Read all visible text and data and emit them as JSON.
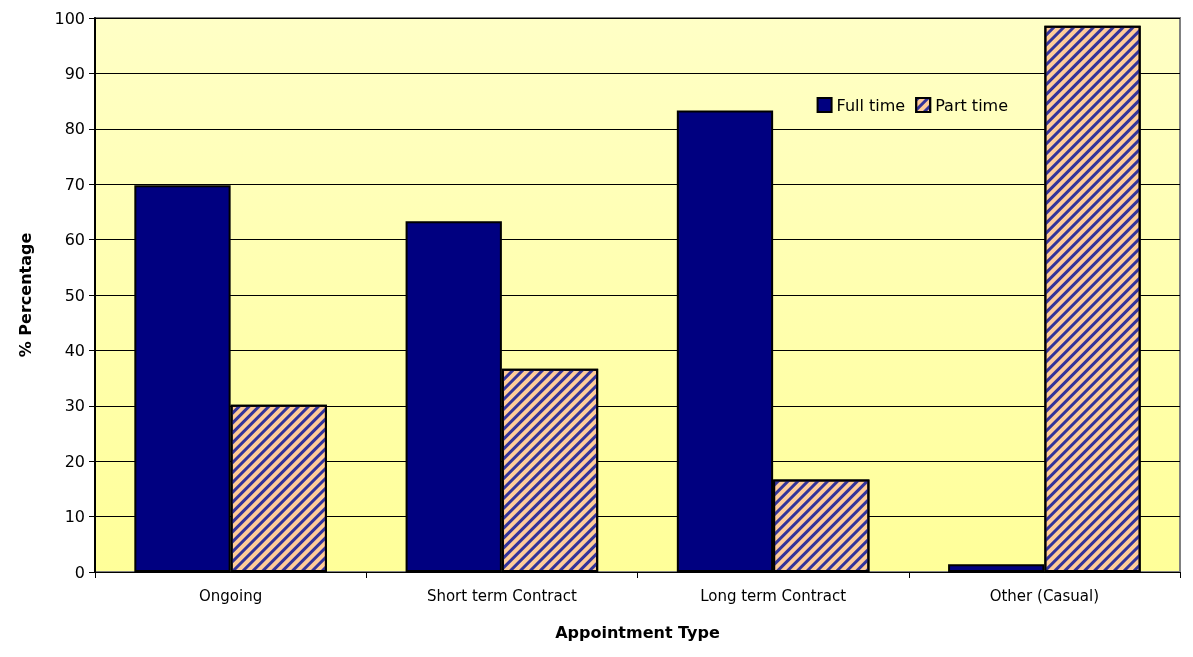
{
  "chart_data": {
    "type": "bar",
    "xlabel": "Appointment Type",
    "ylabel": "% Percentage",
    "categories": [
      "Ongoing",
      "Short term Contract",
      "Long term Contract",
      "Other (Casual)"
    ],
    "series": [
      {
        "name": "Full time",
        "color": "#000080",
        "values": [
          69.8,
          63.3,
          83.3,
          1.4
        ]
      },
      {
        "name": "Part time",
        "color": "#ffcc99",
        "values": [
          30.2,
          36.7,
          16.7,
          98.6
        ]
      }
    ],
    "ylim": [
      0,
      100
    ],
    "yticks": [
      0,
      10,
      20,
      30,
      40,
      50,
      60,
      70,
      80,
      90,
      100
    ],
    "grid": "y",
    "legend": "top right"
  }
}
